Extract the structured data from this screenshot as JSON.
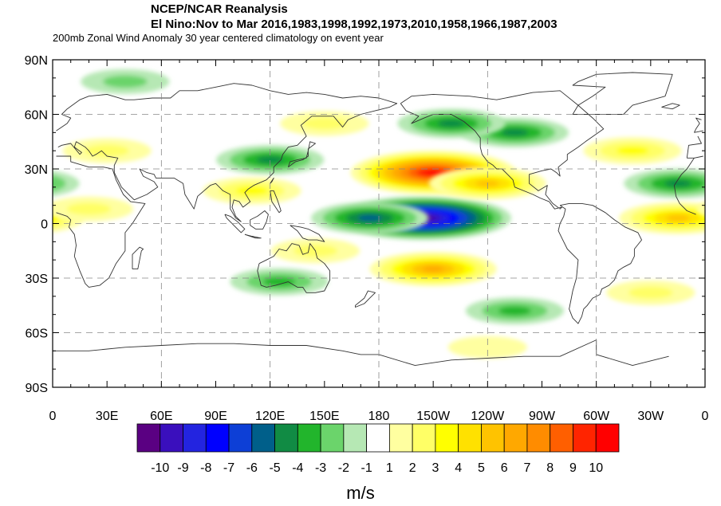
{
  "titles": {
    "line1": "NCEP/NCAR Reanalysis",
    "line2": "El Nino:Nov to Mar 2016,1983,1998,1992,1973,2010,1958,1966,1987,2003",
    "subtitle": "200mb Zonal Wind Anomaly 30 year centered climatology on event year"
  },
  "axes": {
    "lat_labels": [
      "90N",
      "60N",
      "30N",
      "0",
      "30S",
      "60S",
      "90S"
    ],
    "lon_labels": [
      "0",
      "30E",
      "60E",
      "90E",
      "120E",
      "150E",
      "180",
      "150W",
      "120W",
      "90W",
      "60W",
      "30W",
      "0"
    ]
  },
  "colorbar": {
    "units": "m/s",
    "labels": [
      "-10",
      "-9",
      "-8",
      "-7",
      "-6",
      "-5",
      "-4",
      "-3",
      "-2",
      "-1",
      "1",
      "2",
      "3",
      "4",
      "5",
      "6",
      "7",
      "8",
      "9",
      "10"
    ],
    "colors": [
      "#5a0082",
      "#3a0fbd",
      "#2324e0",
      "#0000ff",
      "#0d3fd6",
      "#005f8a",
      "#118b44",
      "#22b52c",
      "#6bd46b",
      "#b6e8b4",
      "#ffffff",
      "#ffffa0",
      "#ffff66",
      "#ffff00",
      "#ffe100",
      "#ffc300",
      "#ffa800",
      "#ff8c00",
      "#ff5f00",
      "#ff2400",
      "#ff0000"
    ]
  },
  "chart_data": {
    "type": "heatmap",
    "projection": "cylindrical-equidistant",
    "lon_range": [
      0,
      360
    ],
    "lat_range": [
      -90,
      90
    ],
    "grid": true,
    "contour_levels": [
      -10,
      -9,
      -8,
      -7,
      -6,
      -5,
      -4,
      -3,
      -2,
      -1,
      1,
      2,
      3,
      4,
      5,
      6,
      7,
      8,
      9,
      10
    ],
    "anomaly_features": [
      {
        "lon": 205,
        "lat": 3,
        "peak": -10
      },
      {
        "lon": 175,
        "lat": 3,
        "peak": -5
      },
      {
        "lon": 255,
        "lat": 50,
        "peak": -4
      },
      {
        "lon": 220,
        "lat": 55,
        "peak": -4
      },
      {
        "lon": 120,
        "lat": 35,
        "peak": -4
      },
      {
        "lon": 345,
        "lat": 22,
        "peak": -4
      },
      {
        "lon": 125,
        "lat": -32,
        "peak": -3
      },
      {
        "lon": 255,
        "lat": -48,
        "peak": -3
      },
      {
        "lon": 40,
        "lat": 78,
        "peak": -2
      },
      {
        "lon": 210,
        "lat": 28,
        "peak": 10
      },
      {
        "lon": 240,
        "lat": 22,
        "peak": 5
      },
      {
        "lon": 210,
        "lat": -25,
        "peak": 6
      },
      {
        "lon": 110,
        "lat": 18,
        "peak": 3
      },
      {
        "lon": 345,
        "lat": 3,
        "peak": 5
      },
      {
        "lon": 20,
        "lat": 8,
        "peak": 2
      },
      {
        "lon": 145,
        "lat": -15,
        "peak": 2
      },
      {
        "lon": 30,
        "lat": 40,
        "peak": 2
      },
      {
        "lon": 320,
        "lat": 40,
        "peak": 3
      },
      {
        "lon": 330,
        "lat": -38,
        "peak": 2
      },
      {
        "lon": 150,
        "lat": 55,
        "peak": 2
      },
      {
        "lon": 240,
        "lat": -68,
        "peak": 1
      }
    ]
  }
}
